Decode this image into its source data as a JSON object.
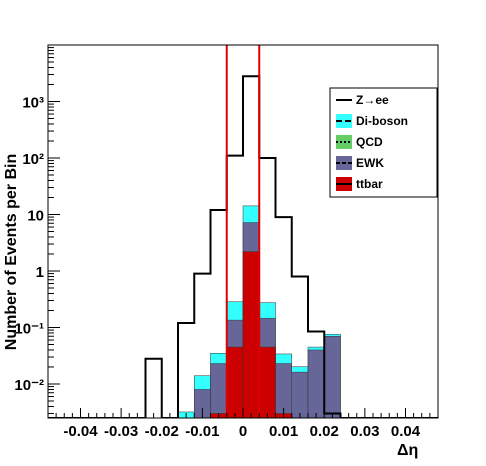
{
  "chart_data": {
    "type": "histogram",
    "xlabel": "Δη",
    "ylabel": "Number of Events per Bin",
    "log_y": true,
    "xlim": [
      -0.048,
      0.048
    ],
    "ylim": [
      0.0025,
      10000
    ],
    "x_ticks": [
      -0.04,
      -0.03,
      -0.02,
      -0.01,
      0,
      0.01,
      0.02,
      0.03,
      0.04
    ],
    "x_tick_labels": [
      "-0.04",
      "-0.03",
      "-0.02",
      "-0.01",
      "0",
      "0.01",
      "0.02",
      "0.03",
      "0.04"
    ],
    "y_ticks": [
      0.01,
      0.1,
      1,
      10,
      100,
      1000
    ],
    "y_tick_labels": [
      "10⁻²",
      "10⁻¹",
      "1",
      "10",
      "10²",
      "10³"
    ],
    "bin_edges": [
      -0.048,
      -0.044,
      -0.04,
      -0.036,
      -0.032,
      -0.028,
      -0.024,
      -0.02,
      -0.016,
      -0.012,
      -0.008,
      -0.004,
      0.0,
      0.004,
      0.008,
      0.012,
      0.016,
      0.02,
      0.024,
      0.028,
      0.032,
      0.036,
      0.04,
      0.044,
      0.048
    ],
    "series": [
      {
        "name": "Z→ee",
        "style": "line",
        "color": "#000000",
        "values": [
          0,
          0,
          0,
          0,
          0,
          0,
          0.028,
          0,
          0.12,
          0.9,
          12,
          110,
          2800,
          100,
          9,
          0.8,
          0.085,
          0.003,
          0,
          0,
          0,
          0,
          0,
          0
        ]
      },
      {
        "name": "Di-boson",
        "style": "fill",
        "color": "#33ffff",
        "values": [
          0,
          0,
          0,
          0,
          0,
          0,
          0,
          0,
          0.0032,
          0.006,
          0.012,
          0.15,
          7.0,
          0.13,
          0.011,
          0.004,
          0.005,
          0.006,
          0,
          0,
          0,
          0,
          0,
          0
        ]
      },
      {
        "name": "QCD",
        "style": "fill",
        "color": "#66cc66",
        "values": [
          0,
          0,
          0,
          0,
          0,
          0,
          0,
          0,
          0,
          0,
          0,
          0,
          0,
          0,
          0,
          0,
          0,
          0,
          0,
          0,
          0,
          0,
          0,
          0
        ]
      },
      {
        "name": "EWK",
        "style": "fill",
        "color": "#666699",
        "values": [
          0,
          0,
          0,
          0,
          0,
          0,
          0,
          0,
          0,
          0.008,
          0.02,
          0.09,
          5.0,
          0.1,
          0.02,
          0.015,
          0.04,
          0.07,
          0,
          0,
          0,
          0,
          0,
          0
        ]
      },
      {
        "name": "ttbar",
        "style": "fill",
        "color": "#cc0000",
        "values": [
          0,
          0,
          0,
          0,
          0,
          0,
          0,
          0,
          0,
          0,
          0.003,
          0.045,
          2.2,
          0.045,
          0.003,
          0.0012,
          0,
          0,
          0,
          0,
          0,
          0,
          0,
          0
        ]
      }
    ],
    "cut_lines": {
      "x": [
        -0.004,
        0.004
      ],
      "color": "#dd0000"
    },
    "legend_placement": "upper-right"
  }
}
